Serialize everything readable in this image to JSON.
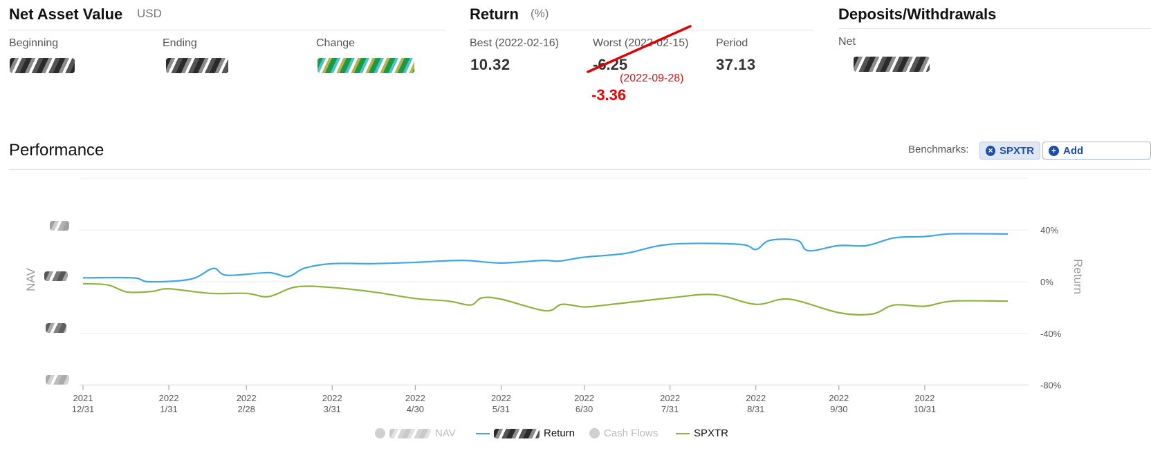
{
  "nav": {
    "title": "Net Asset Value",
    "unit": "USD",
    "beginning_label": "Beginning",
    "ending_label": "Ending",
    "change_label": "Change"
  },
  "return": {
    "title": "Return",
    "unit": "(%)",
    "best_label": "Best (2022-02-16)",
    "best_value": "10.32",
    "worst_label": "Worst (2022-02-15)",
    "worst_value": "-6.25",
    "worst_correction_date": "(2022-09-28)",
    "worst_correction_value": "-3.36",
    "period_label": "Period",
    "period_value": "37.13"
  },
  "deposits": {
    "title": "Deposits/Withdrawals",
    "net_label": "Net"
  },
  "performance": {
    "title": "Performance",
    "benchmarks_label": "Benchmarks:",
    "benchmark_chip": "SPXTR",
    "add_label": "Add"
  },
  "colors": {
    "return_line": "#3aa6e8",
    "spxtr_line": "#8db33a",
    "annotation_red": "#e00000",
    "chip_blue": "#1d4fa8"
  },
  "chart_data": {
    "type": "line",
    "ylabel_left": "NAV",
    "ylabel_right": "Return",
    "right_axis": {
      "ylim": [
        -80,
        80
      ],
      "ticks": [
        40,
        0,
        -40,
        -80
      ],
      "tick_labels": [
        "40%",
        "0%",
        "-40%",
        "-80%"
      ]
    },
    "x_ticks": [
      {
        "year": "2021",
        "date": "12/31"
      },
      {
        "year": "2022",
        "date": "1/31"
      },
      {
        "year": "2022",
        "date": "2/28"
      },
      {
        "year": "2022",
        "date": "3/31"
      },
      {
        "year": "2022",
        "date": "4/30"
      },
      {
        "year": "2022",
        "date": "5/31"
      },
      {
        "year": "2022",
        "date": "6/30"
      },
      {
        "year": "2022",
        "date": "7/31"
      },
      {
        "year": "2022",
        "date": "8/31"
      },
      {
        "year": "2022",
        "date": "9/30"
      },
      {
        "year": "2022",
        "date": "10/31"
      }
    ],
    "x_range": [
      "2021-12-31",
      "2022-11-30"
    ],
    "series": [
      {
        "name": "Return",
        "color": "#3aa6e8",
        "points": [
          [
            "2021-12-31",
            3
          ],
          [
            "2022-01-18",
            3
          ],
          [
            "2022-01-24",
            0
          ],
          [
            "2022-02-08",
            2
          ],
          [
            "2022-02-16",
            10.32
          ],
          [
            "2022-02-21",
            5
          ],
          [
            "2022-03-08",
            7
          ],
          [
            "2022-03-15",
            4
          ],
          [
            "2022-03-21",
            10.5
          ],
          [
            "2022-03-31",
            14
          ],
          [
            "2022-04-15",
            14
          ],
          [
            "2022-04-30",
            15
          ],
          [
            "2022-05-17",
            16.5
          ],
          [
            "2022-05-31",
            14.5
          ],
          [
            "2022-06-15",
            16.5
          ],
          [
            "2022-06-21",
            16
          ],
          [
            "2022-06-30",
            19
          ],
          [
            "2022-07-15",
            22
          ],
          [
            "2022-07-31",
            29
          ],
          [
            "2022-08-25",
            29
          ],
          [
            "2022-08-31",
            25
          ],
          [
            "2022-09-05",
            32
          ],
          [
            "2022-09-15",
            32
          ],
          [
            "2022-09-19",
            24
          ],
          [
            "2022-09-30",
            28
          ],
          [
            "2022-10-10",
            28
          ],
          [
            "2022-10-20",
            34
          ],
          [
            "2022-10-31",
            35
          ],
          [
            "2022-11-10",
            37.13
          ],
          [
            "2022-11-30",
            37
          ]
        ]
      },
      {
        "name": "SPXTR",
        "color": "#8db33a",
        "points": [
          [
            "2021-12-31",
            -1.5
          ],
          [
            "2022-01-09",
            -2.5
          ],
          [
            "2022-01-16",
            -8
          ],
          [
            "2022-01-25",
            -7.5
          ],
          [
            "2022-01-31",
            -5.5
          ],
          [
            "2022-02-15",
            -9
          ],
          [
            "2022-02-28",
            -9
          ],
          [
            "2022-03-08",
            -11.5
          ],
          [
            "2022-03-18",
            -4
          ],
          [
            "2022-03-31",
            -4.5
          ],
          [
            "2022-04-15",
            -8
          ],
          [
            "2022-04-30",
            -13
          ],
          [
            "2022-05-12",
            -15
          ],
          [
            "2022-05-20",
            -18
          ],
          [
            "2022-05-24",
            -12.5
          ],
          [
            "2022-05-31",
            -13.5
          ],
          [
            "2022-06-16",
            -22.5
          ],
          [
            "2022-06-22",
            -17.5
          ],
          [
            "2022-06-30",
            -19.5
          ],
          [
            "2022-07-08",
            -18
          ],
          [
            "2022-07-31",
            -12.5
          ],
          [
            "2022-08-16",
            -10
          ],
          [
            "2022-08-31",
            -17.5
          ],
          [
            "2022-09-12",
            -13.5
          ],
          [
            "2022-09-30",
            -24
          ],
          [
            "2022-10-12",
            -25
          ],
          [
            "2022-10-20",
            -18
          ],
          [
            "2022-10-31",
            -19
          ],
          [
            "2022-11-10",
            -15
          ],
          [
            "2022-11-30",
            -15
          ]
        ]
      }
    ],
    "legend": [
      {
        "label_visible": "NAV",
        "style": "dot",
        "enabled": false
      },
      {
        "label_visible": "Return",
        "style": "line",
        "color": "#3aa6e8",
        "enabled": true
      },
      {
        "label_visible": "Cash Flows",
        "style": "dot",
        "enabled": false
      },
      {
        "label_visible": "SPXTR",
        "style": "line",
        "color": "#8db33a",
        "enabled": true
      }
    ]
  }
}
